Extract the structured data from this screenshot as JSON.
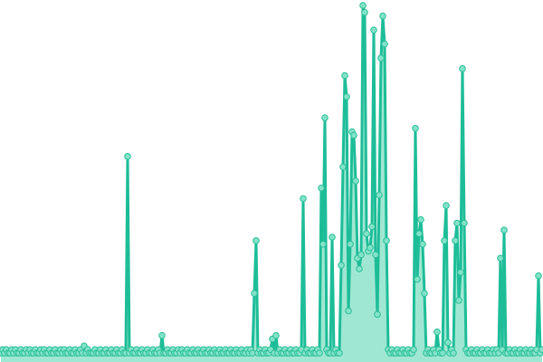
{
  "chart_data": {
    "type": "line",
    "area_fill": true,
    "markers": true,
    "title": "",
    "xlabel": "",
    "ylabel": "",
    "axes_visible": false,
    "grid": false,
    "ylim": [
      0,
      100
    ],
    "colors": {
      "line": "#1dbd98",
      "area": "#8fe3cb",
      "marker_fill": "#82e3c9",
      "marker_stroke": "#2bbf98"
    },
    "series": [
      {
        "values": [
          1,
          2,
          1,
          2,
          1,
          1,
          2,
          1,
          2,
          1,
          1,
          2,
          1,
          1,
          2,
          1,
          2,
          1,
          1,
          2,
          1,
          1,
          2,
          1,
          2,
          1,
          1,
          2,
          1,
          1,
          2,
          1,
          1,
          2,
          1,
          2,
          1,
          1,
          2,
          1,
          1,
          2,
          1,
          1,
          2,
          1,
          3,
          1,
          2,
          1,
          1,
          1,
          2,
          1,
          1,
          2,
          1,
          1,
          2,
          1,
          1,
          2,
          1,
          1,
          2,
          1,
          1,
          2,
          1,
          1,
          57,
          1,
          2,
          1,
          1,
          2,
          1,
          1,
          2,
          1,
          1,
          2,
          1,
          1,
          2,
          1,
          1,
          2,
          1,
          6,
          1,
          1,
          2,
          1,
          1,
          2,
          1,
          1,
          2,
          1,
          2,
          1,
          1,
          2,
          1,
          1,
          2,
          1,
          1,
          2,
          1,
          1,
          2,
          1,
          1,
          2,
          1,
          1,
          2,
          1,
          1,
          2,
          1,
          1,
          2,
          1,
          1,
          2,
          1,
          1,
          2,
          1,
          1,
          2,
          1,
          1,
          2,
          1,
          2,
          1,
          18,
          33,
          1,
          2,
          1,
          1,
          2,
          1,
          1,
          2,
          5,
          1,
          6,
          1,
          2,
          1,
          1,
          2,
          1,
          1,
          2,
          1,
          1,
          2,
          1,
          1,
          2,
          45,
          1,
          2,
          1,
          1,
          2,
          1,
          1,
          2,
          1,
          48,
          32,
          68,
          2,
          1,
          1,
          34,
          1,
          2,
          1,
          1,
          26,
          54,
          80,
          74,
          13,
          32,
          64,
          63,
          50,
          28,
          25,
          29,
          100,
          98,
          35,
          30,
          31,
          37,
          93,
          29,
          12,
          46,
          85,
          97,
          89,
          33,
          2,
          1,
          2,
          1,
          1,
          2,
          1,
          1,
          2,
          1,
          1,
          2,
          1,
          1,
          2,
          65,
          22,
          35,
          39,
          32,
          18,
          1,
          2,
          1,
          1,
          2,
          1,
          7,
          2,
          1,
          1,
          33,
          43,
          4,
          1,
          2,
          1,
          33,
          38,
          16,
          24,
          82,
          38,
          2,
          1,
          1,
          2,
          1,
          1,
          2,
          1,
          1,
          2,
          1,
          1,
          2,
          1,
          1,
          2,
          1,
          2,
          1,
          28,
          2,
          36,
          1,
          1,
          2,
          1,
          1,
          2,
          1,
          1,
          2,
          1,
          1,
          2,
          1,
          1,
          2,
          1,
          1,
          2,
          23,
          1,
          2
        ]
      }
    ]
  }
}
